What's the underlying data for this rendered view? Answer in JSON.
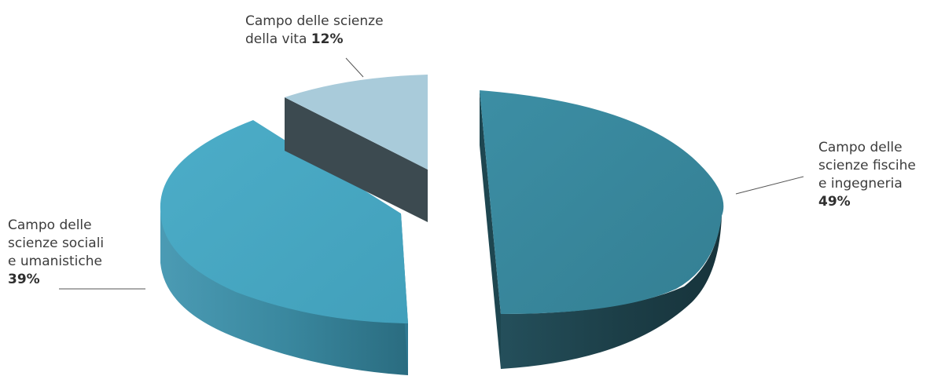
{
  "chart_data": {
    "type": "pie",
    "style": "3d-exploded",
    "slices": [
      {
        "label_lines": [
          "Campo delle",
          "scienze fiscihe",
          "e ingegneria"
        ],
        "value": 49,
        "value_text": "49%",
        "color": "#3a8aa0",
        "side_color": "#1f4a55"
      },
      {
        "label_lines": [
          "Campo delle",
          "scienze sociali",
          "e umanistiche"
        ],
        "value": 39,
        "value_text": "39%",
        "color": "#48a8c3",
        "side_color": "#2f7f98"
      },
      {
        "label_lines": [
          "Campo delle scienze",
          "della vita"
        ],
        "value": 12,
        "value_text": "12%",
        "color": "#a9cbda",
        "side_color": "#3d4c52"
      }
    ]
  }
}
